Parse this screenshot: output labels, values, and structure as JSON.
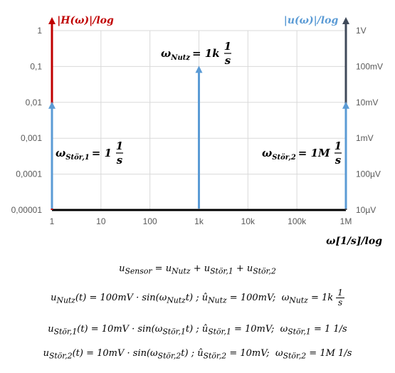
{
  "chart_data": {
    "type": "spectrum",
    "left_axis_title": "|H(ω)|/log",
    "right_axis_title": "|u(ω)|/log",
    "x_axis_title": "ω[1/s]/log",
    "x_ticks": [
      "1",
      "10",
      "100",
      "1k",
      "10k",
      "100k",
      "1M"
    ],
    "y_left_ticks": [
      "1",
      "0,1",
      "0,01",
      "0,001",
      "0,0001",
      "0,00001"
    ],
    "y_right_ticks": [
      "1V",
      "100mV",
      "10mV",
      "1mV",
      "100µV",
      "10µV"
    ],
    "x_scale": "log",
    "y_scale": "log",
    "grid": true,
    "lines": [
      {
        "name": "ωStör,1",
        "x": 1,
        "u_volts": 0.01,
        "color": "#5b9bd5"
      },
      {
        "name": "ωNutz",
        "x": 1000,
        "u_volts": 0.1,
        "color": "#5b9bd5"
      },
      {
        "name": "ωStör,2",
        "x": 1000000,
        "u_volts": 0.01,
        "color": "#5b9bd5"
      }
    ],
    "annotations": [
      {
        "text": "ω_Stör,1 = 1 1/s"
      },
      {
        "text": "ω_Nutz = 1k 1/s"
      },
      {
        "text": "ω_Stör,2 = 1M 1/s"
      }
    ],
    "colors": {
      "left_axis": "#c00000",
      "right_axis": "#404a5a",
      "lines": "#5b9bd5"
    }
  },
  "labels": {
    "stoer1_main": "ω",
    "stoer1_sub": "Stör,1",
    "stoer1_val": "= 1",
    "nutz_main": "ω",
    "nutz_sub": "Nutz",
    "nutz_val": "= 1k",
    "stoer2_main": "ω",
    "stoer2_sub": "Stör,2",
    "stoer2_val": "= 1M",
    "frac_num": "1",
    "frac_den": "s"
  },
  "equations": [
    "u_Sensor = u_Nutz + u_Stör,1 + u_Stör,2",
    "u_Nutz(t) = 100mV · sin(ω_Nutz t) ; û_Nutz = 100mV;  ω_Nutz = 1k 1/s",
    "u_Stör,1(t) = 10mV · sin(ω_Stör,1 t) ; û_Stör,1 = 10mV;  ω_Stör,1 = 1 1/s",
    "u_Stör,2(t) = 10mV · sin(ω_Stör,2 t) ; û_Stör,2 = 10mV;  ω_Stör,2 = 1M 1/s"
  ]
}
